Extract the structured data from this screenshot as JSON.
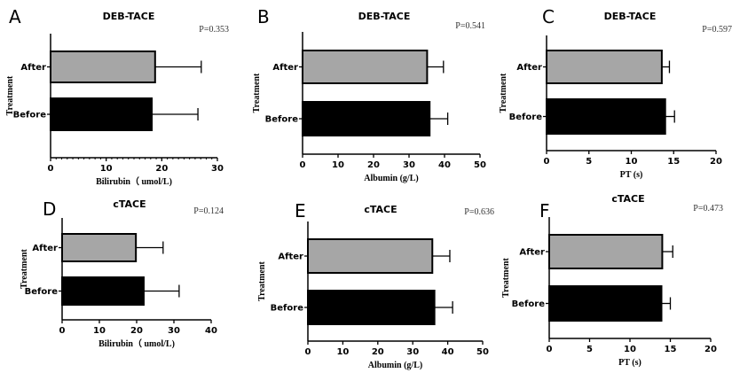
{
  "chart_data": [
    {
      "panel": "A",
      "type": "bar",
      "orientation": "horizontal",
      "title": "DEB-TACE",
      "p_value": "P=0.353",
      "categories": [
        "After",
        "Before"
      ],
      "values": [
        18.8,
        18.2
      ],
      "error_upper": [
        27.1,
        26.5
      ],
      "bar_colors": [
        "#a6a6a6",
        "#000000"
      ],
      "xlabel": "Bilirubin（ umol/L)",
      "ylabel": "Treatment",
      "xlim": [
        0,
        30
      ],
      "xticks": [
        "0",
        "10",
        "20",
        "30"
      ],
      "minor_ticks": true,
      "grid": false
    },
    {
      "panel": "B",
      "type": "bar",
      "orientation": "horizontal",
      "title": "DEB-TACE",
      "p_value": "P=0.541",
      "categories": [
        "After",
        "Before"
      ],
      "values": [
        35.1,
        35.8
      ],
      "error_upper": [
        39.7,
        40.9
      ],
      "bar_colors": [
        "#a6a6a6",
        "#000000"
      ],
      "xlabel": "Albumin (g/L)",
      "ylabel": "Treatment",
      "xlim": [
        0,
        50
      ],
      "xticks": [
        "0",
        "10",
        "20",
        "30",
        "40",
        "50"
      ],
      "grid": false
    },
    {
      "panel": "C",
      "type": "bar",
      "orientation": "horizontal",
      "title": "DEB-TACE",
      "p_value": "P=0.597",
      "categories": [
        "After",
        "Before"
      ],
      "values": [
        13.6,
        14.0
      ],
      "error_upper": [
        14.5,
        15.1
      ],
      "bar_colors": [
        "#a6a6a6",
        "#000000"
      ],
      "xlabel": "PT (s)",
      "ylabel": "Treatment",
      "xlim": [
        0,
        20
      ],
      "xticks": [
        "0",
        "5",
        "10",
        "15",
        "20"
      ],
      "grid": false
    },
    {
      "panel": "D",
      "type": "bar",
      "orientation": "horizontal",
      "title": "cTACE",
      "p_value": "P=0.124",
      "categories": [
        "After",
        "Before"
      ],
      "values": [
        19.8,
        21.9
      ],
      "error_upper": [
        27.1,
        31.4
      ],
      "bar_colors": [
        "#a6a6a6",
        "#000000"
      ],
      "xlabel": "Bilirubin（ umol/L)",
      "ylabel": "Treatment",
      "xlim": [
        0,
        40
      ],
      "xticks": [
        "0",
        "10",
        "20",
        "30",
        "40"
      ],
      "grid": false
    },
    {
      "panel": "E",
      "type": "bar",
      "orientation": "horizontal",
      "title": "cTACE",
      "p_value": "P=0.636",
      "categories": [
        "After",
        "Before"
      ],
      "values": [
        35.6,
        36.2
      ],
      "error_upper": [
        40.6,
        41.4
      ],
      "bar_colors": [
        "#a6a6a6",
        "#000000"
      ],
      "xlabel": "Albumin (g/L)",
      "ylabel": "Treatment",
      "xlim": [
        0,
        50
      ],
      "xticks": [
        "0",
        "10",
        "20",
        "30",
        "40",
        "50"
      ],
      "grid": false
    },
    {
      "panel": "F",
      "type": "bar",
      "orientation": "horizontal",
      "title": "cTACE",
      "p_value": "P=0.473",
      "categories": [
        "After",
        "Before"
      ],
      "values": [
        14.0,
        13.9
      ],
      "error_upper": [
        15.3,
        15.0
      ],
      "bar_colors": [
        "#a6a6a6",
        "#000000"
      ],
      "xlabel": "PT (s)",
      "ylabel": "Treatment",
      "xlim": [
        0,
        20
      ],
      "xticks": [
        "0",
        "5",
        "10",
        "15",
        "20"
      ],
      "grid": false
    }
  ]
}
